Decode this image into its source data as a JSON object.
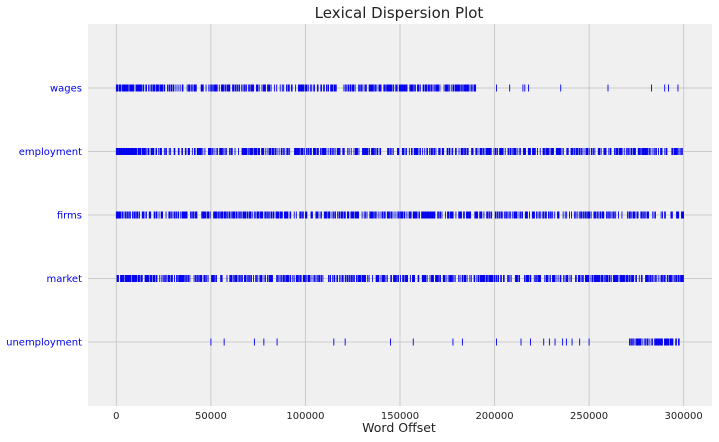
{
  "chart_data": {
    "type": "scatter",
    "title": "Lexical Dispersion Plot",
    "xlabel": "Word Offset",
    "ylabel": "",
    "xlim": [
      -15000,
      315000
    ],
    "xticks": [
      0,
      50000,
      100000,
      150000,
      200000,
      250000,
      300000
    ],
    "xtick_labels": [
      "0",
      "50000",
      "100000",
      "150000",
      "200000",
      "250000",
      "300000"
    ],
    "grid": true,
    "marker": "|",
    "colors": {
      "marker": "#0000ee",
      "background": "#f0f0f0",
      "grid": "#cbcbcb",
      "label": "#0000ee"
    },
    "series": [
      {
        "name": "wages",
        "segments": [
          [
            0,
            13000,
            0.85
          ],
          [
            13000,
            50000,
            0.55
          ],
          [
            50000,
            100000,
            0.55
          ],
          [
            100000,
            150000,
            0.55
          ],
          [
            150000,
            191000,
            0.65
          ]
        ],
        "x": [
          201000,
          208000,
          215000,
          216000,
          218000,
          235000,
          260000,
          283000,
          290000,
          292000,
          297000
        ]
      },
      {
        "name": "employment",
        "segments": [
          [
            0,
            15000,
            0.9
          ],
          [
            15000,
            300000,
            0.55
          ]
        ],
        "x": []
      },
      {
        "name": "firms",
        "segments": [
          [
            0,
            60000,
            0.65
          ],
          [
            60000,
            200000,
            0.6
          ],
          [
            200000,
            300000,
            0.5
          ]
        ],
        "x": []
      },
      {
        "name": "market",
        "segments": [
          [
            0,
            20000,
            0.85
          ],
          [
            20000,
            300000,
            0.6
          ]
        ],
        "x": []
      },
      {
        "name": "unemployment",
        "segments": [
          [
            271000,
            298000,
            0.7
          ]
        ],
        "x": [
          50000,
          57000,
          73000,
          78000,
          85000,
          115000,
          121000,
          145000,
          157000,
          178000,
          183000,
          201000,
          214000,
          219000,
          226000,
          229000,
          232000,
          236000,
          238000,
          241000,
          245000,
          250000
        ]
      }
    ]
  }
}
